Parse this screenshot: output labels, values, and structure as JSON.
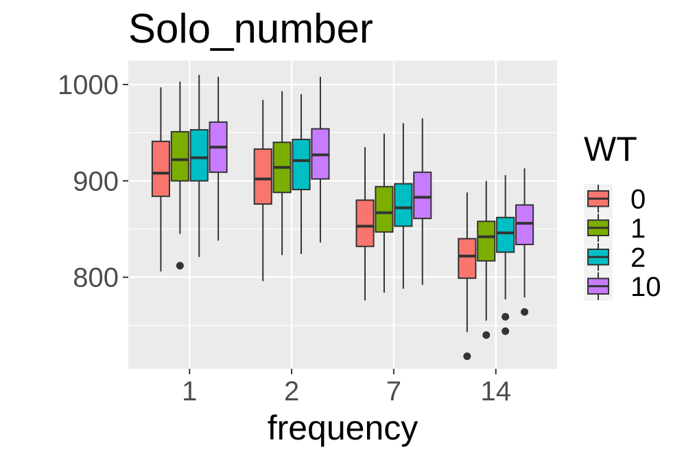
{
  "chart_data": {
    "type": "boxplot",
    "title": "Solo_number",
    "xlabel": "frequency",
    "ylabel": "",
    "categories": [
      "1",
      "2",
      "7",
      "14"
    ],
    "ylim": [
      705,
      1025
    ],
    "yticks": [
      800,
      900,
      1000
    ],
    "grid": true,
    "legend": {
      "title": "WT",
      "placement": "right"
    },
    "series": [
      {
        "name": "0",
        "color": "#F8766D",
        "boxes": [
          {
            "whisker_low": 806,
            "q1": 884,
            "median": 908,
            "q3": 941,
            "whisker_high": 997,
            "outliers": []
          },
          {
            "whisker_low": 796,
            "q1": 876,
            "median": 902,
            "q3": 933,
            "whisker_high": 984,
            "outliers": []
          },
          {
            "whisker_low": 776,
            "q1": 832,
            "median": 853,
            "q3": 880,
            "whisker_high": 935,
            "outliers": []
          },
          {
            "whisker_low": 743,
            "q1": 799,
            "median": 822,
            "q3": 840,
            "whisker_high": 888,
            "outliers": [
              718
            ]
          }
        ]
      },
      {
        "name": "1",
        "color": "#7CAE00",
        "boxes": [
          {
            "whisker_low": 845,
            "q1": 900,
            "median": 922,
            "q3": 951,
            "whisker_high": 1003,
            "outliers": [
              812
            ]
          },
          {
            "whisker_low": 823,
            "q1": 888,
            "median": 914,
            "q3": 940,
            "whisker_high": 993,
            "outliers": []
          },
          {
            "whisker_low": 784,
            "q1": 847,
            "median": 867,
            "q3": 894,
            "whisker_high": 949,
            "outliers": []
          },
          {
            "whisker_low": 755,
            "q1": 817,
            "median": 842,
            "q3": 858,
            "whisker_high": 900,
            "outliers": [
              740
            ]
          }
        ]
      },
      {
        "name": "2",
        "color": "#00BFC4",
        "boxes": [
          {
            "whisker_low": 821,
            "q1": 900,
            "median": 924,
            "q3": 953,
            "whisker_high": 1010,
            "outliers": []
          },
          {
            "whisker_low": 824,
            "q1": 891,
            "median": 921,
            "q3": 943,
            "whisker_high": 990,
            "outliers": []
          },
          {
            "whisker_low": 788,
            "q1": 853,
            "median": 872,
            "q3": 897,
            "whisker_high": 960,
            "outliers": []
          },
          {
            "whisker_low": 777,
            "q1": 826,
            "median": 846,
            "q3": 862,
            "whisker_high": 906,
            "outliers": [
              759,
              744
            ]
          }
        ]
      },
      {
        "name": "10",
        "color": "#C77CFF",
        "boxes": [
          {
            "whisker_low": 838,
            "q1": 909,
            "median": 935,
            "q3": 961,
            "whisker_high": 1008,
            "outliers": []
          },
          {
            "whisker_low": 836,
            "q1": 902,
            "median": 927,
            "q3": 954,
            "whisker_high": 1008,
            "outliers": []
          },
          {
            "whisker_low": 792,
            "q1": 861,
            "median": 883,
            "q3": 909,
            "whisker_high": 965,
            "outliers": []
          },
          {
            "whisker_low": 779,
            "q1": 834,
            "median": 856,
            "q3": 875,
            "whisker_high": 913,
            "outliers": [
              764
            ]
          }
        ]
      }
    ]
  }
}
